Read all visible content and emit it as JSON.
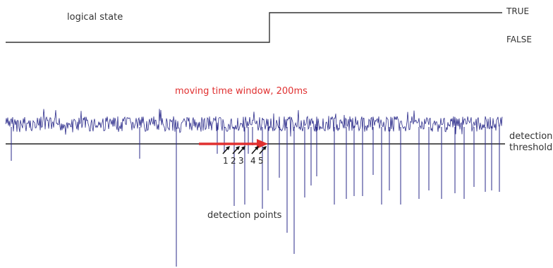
{
  "logical_state": {
    "label": "logical state",
    "levels": {
      "high": "TRUE",
      "low": "FALSE"
    }
  },
  "moving_window": {
    "label": "moving time window, 200ms",
    "color": "#e03030"
  },
  "threshold": {
    "label_line1": "detection",
    "label_line2": "threshold"
  },
  "detection": {
    "label": "detection points",
    "point_numbers": [
      "1",
      "2",
      "3",
      "4",
      "5"
    ]
  },
  "signal": {
    "color": "#2a2a8a"
  }
}
